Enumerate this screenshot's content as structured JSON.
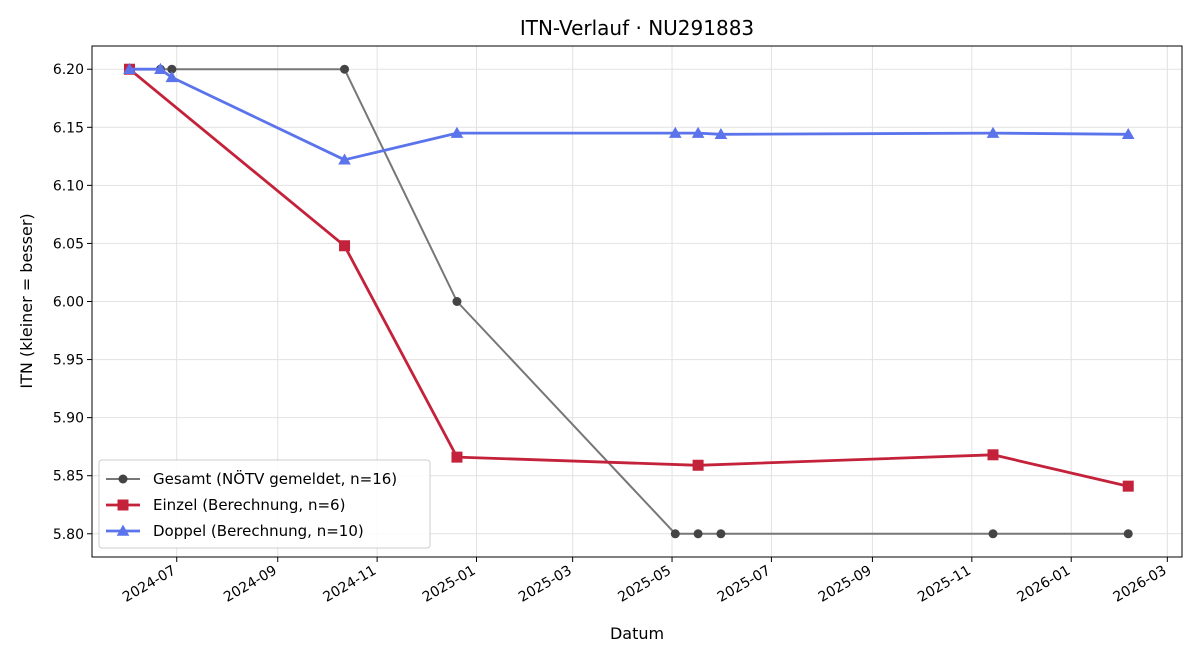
{
  "chart_data": {
    "type": "line",
    "title": "ITN-Verlauf · NU291883",
    "xlabel": "Datum",
    "ylabel": "ITN  (kleiner = besser)",
    "xlim": [
      "2024-05-10",
      "2026-03-10"
    ],
    "ylim": [
      5.78,
      6.22
    ],
    "grid": true,
    "legend_position": "lower-left",
    "x_ticks": [
      "2024-07",
      "2024-09",
      "2024-11",
      "2025-01",
      "2025-03",
      "2025-05",
      "2025-07",
      "2025-09",
      "2025-11",
      "2026-01",
      "2026-03"
    ],
    "y_ticks": [
      "5.80",
      "5.85",
      "5.90",
      "5.95",
      "6.00",
      "6.05",
      "6.10",
      "6.15",
      "6.20"
    ],
    "series": [
      {
        "name": "Gesamt (NÖTV gemeldet, n=16)",
        "color": "#777777",
        "marker_color": "#444444",
        "marker": "circle",
        "points": [
          {
            "x": "2024-06-02",
            "y": 6.2
          },
          {
            "x": "2024-06-21",
            "y": 6.2
          },
          {
            "x": "2024-06-28",
            "y": 6.2
          },
          {
            "x": "2024-10-12",
            "y": 6.2
          },
          {
            "x": "2024-12-20",
            "y": 6.0
          },
          {
            "x": "2025-05-03",
            "y": 5.8
          },
          {
            "x": "2025-05-17",
            "y": 5.8
          },
          {
            "x": "2025-05-31",
            "y": 5.8
          },
          {
            "x": "2025-11-14",
            "y": 5.8
          },
          {
            "x": "2026-02-05",
            "y": 5.8
          }
        ]
      },
      {
        "name": "Einzel (Berechnung, n=6)",
        "color": "#c4213a",
        "marker_color": "#c4213a",
        "marker": "square",
        "points": [
          {
            "x": "2024-06-02",
            "y": 6.2
          },
          {
            "x": "2024-10-12",
            "y": 6.048
          },
          {
            "x": "2024-12-20",
            "y": 5.866
          },
          {
            "x": "2025-05-17",
            "y": 5.859
          },
          {
            "x": "2025-11-14",
            "y": 5.868
          },
          {
            "x": "2026-02-05",
            "y": 5.841
          }
        ]
      },
      {
        "name": "Doppel (Berechnung, n=10)",
        "color": "#5b74eb",
        "marker_color": "#5b74eb",
        "marker": "triangle",
        "points": [
          {
            "x": "2024-06-02",
            "y": 6.2
          },
          {
            "x": "2024-06-21",
            "y": 6.2
          },
          {
            "x": "2024-06-28",
            "y": 6.193
          },
          {
            "x": "2024-10-12",
            "y": 6.122
          },
          {
            "x": "2024-12-20",
            "y": 6.145
          },
          {
            "x": "2025-05-03",
            "y": 6.145
          },
          {
            "x": "2025-05-17",
            "y": 6.145
          },
          {
            "x": "2025-05-31",
            "y": 6.144
          },
          {
            "x": "2025-11-14",
            "y": 6.145
          },
          {
            "x": "2026-02-05",
            "y": 6.144
          }
        ]
      }
    ]
  }
}
